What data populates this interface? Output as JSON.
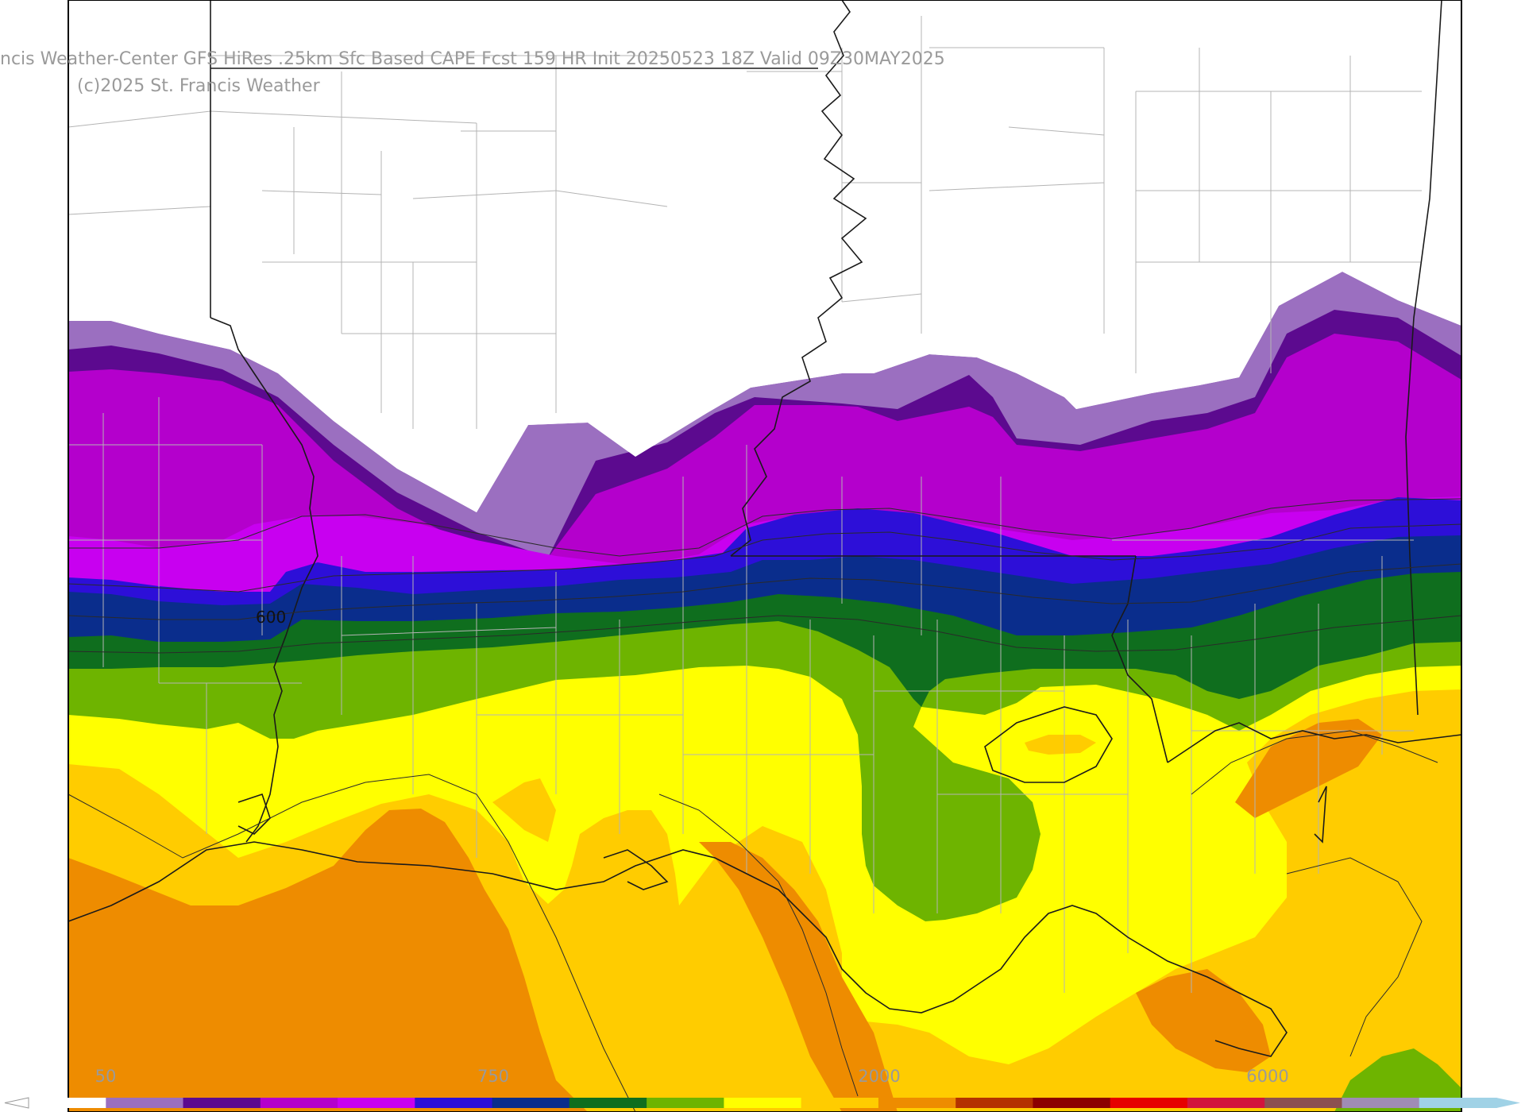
{
  "map": {
    "title": "ncis Weather-Center GFS HiRes .25km Sfc Based CAPE  Fcst 159 HR Init 20250523 18Z  Valid 09Z30MAY2025",
    "copyright": "(c)2025 St. Francis Weather",
    "contour_label": "600"
  },
  "colorbar": {
    "labels": [
      "50",
      "750",
      "2000",
      "6000"
    ],
    "colors": [
      "#ffffff",
      "#9b6fc0",
      "#5c0a8f",
      "#b400cc",
      "#c800f0",
      "#2d0fd8",
      "#0a2d8c",
      "#0f6e1e",
      "#6eb400",
      "#ffff00",
      "#ffcc00",
      "#ee8c00",
      "#b43200",
      "#8c0000",
      "#e60000",
      "#d2143c",
      "#8c5050",
      "#a08cb4",
      "#a0d2e6"
    ]
  },
  "palette": {
    "light_purple": "#9b6fc0",
    "dark_purple": "#5c0a8f",
    "magenta": "#b400cc",
    "violet": "#c800f0",
    "blue": "#2d0fd8",
    "navy": "#0a2d8c",
    "dark_green": "#0f6e1e",
    "light_green": "#6eb400",
    "yellow": "#ffff00",
    "gold": "#ffcc00",
    "orange": "#ee8c00"
  }
}
